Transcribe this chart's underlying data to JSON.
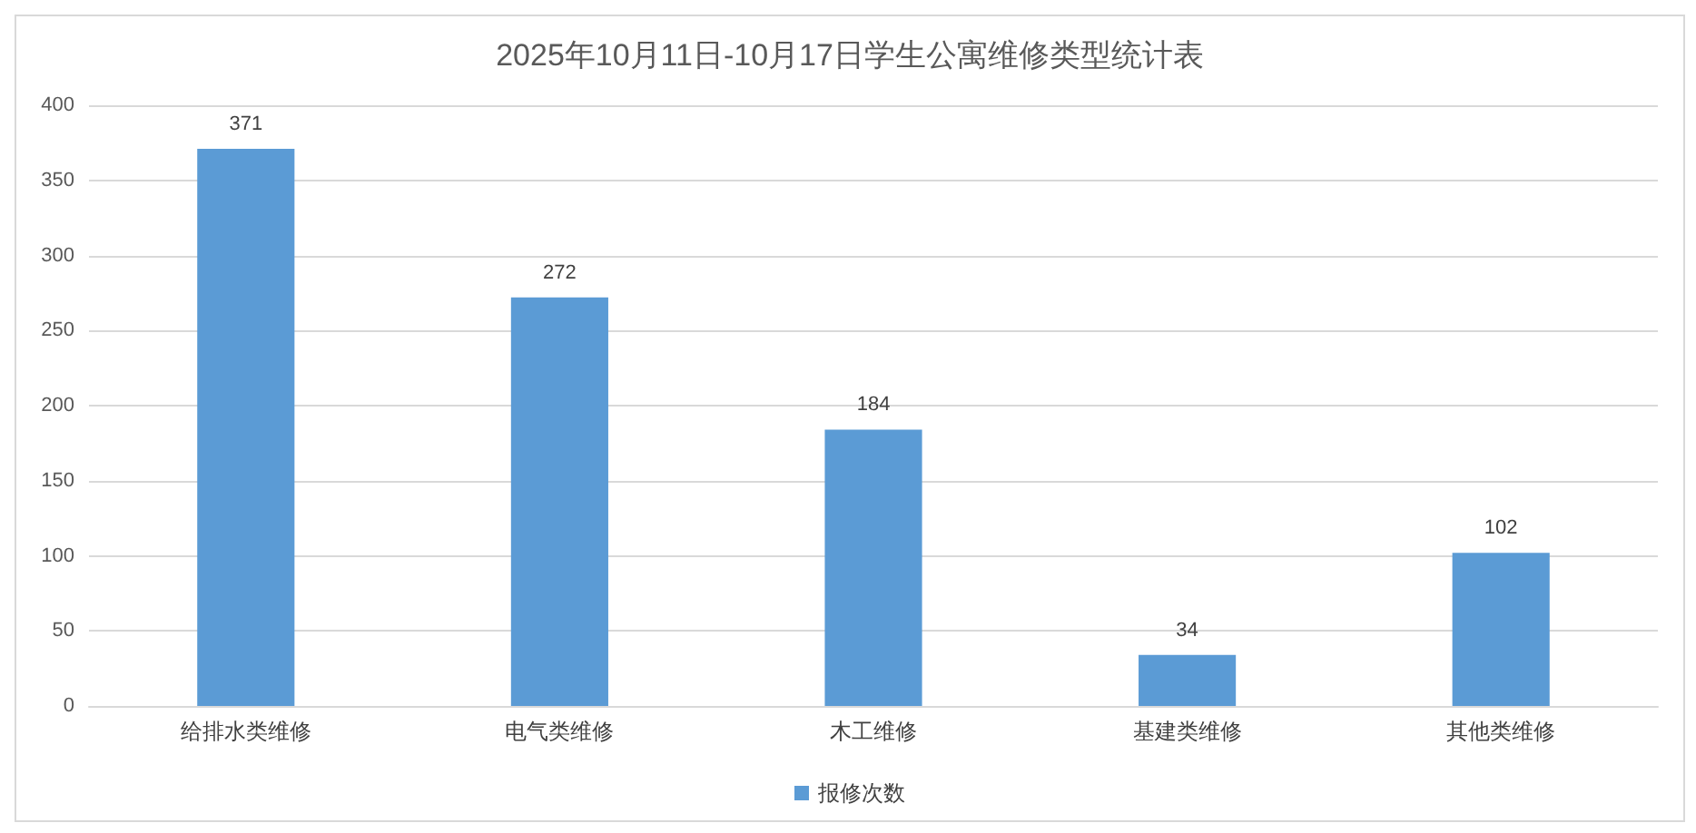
{
  "chart_data": {
    "type": "bar",
    "title": "2025年10月11日-10月17日学生公寓维修类型统计表",
    "categories": [
      "给排水类维修",
      "电气类维修",
      "木工维修",
      "基建类维修",
      "其他类维修"
    ],
    "series": [
      {
        "name": "报修次数",
        "color": "#5b9bd5",
        "values": [
          371,
          272,
          184,
          34,
          102
        ]
      }
    ],
    "ylim": [
      0,
      400
    ],
    "yticks": [
      0,
      50,
      100,
      150,
      200,
      250,
      300,
      350,
      400
    ],
    "grid": "y",
    "legend": "bottom",
    "data_labels": true
  }
}
